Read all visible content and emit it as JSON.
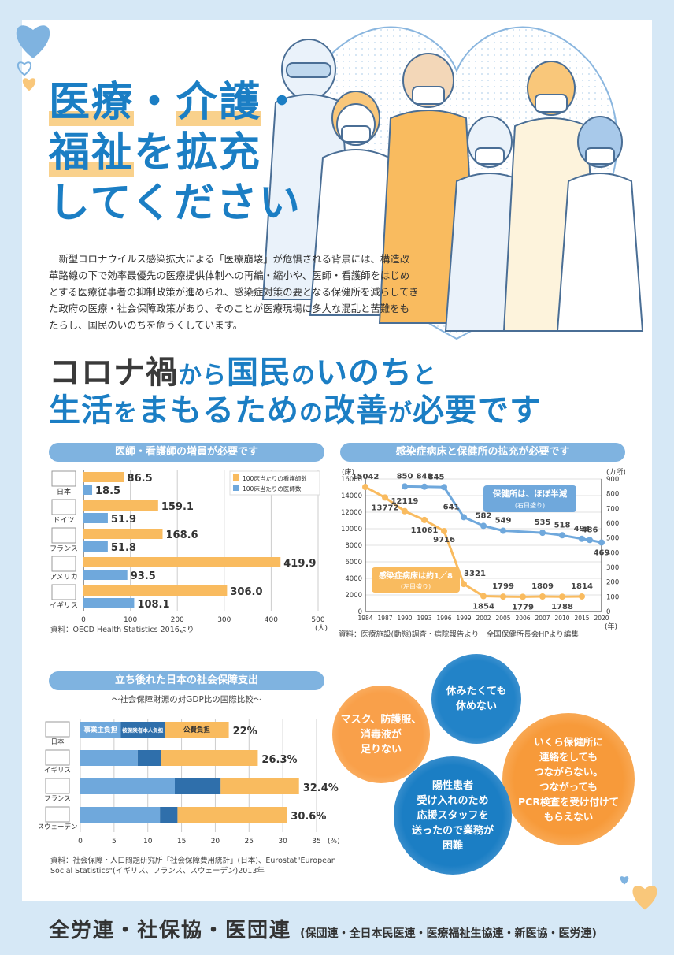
{
  "title": {
    "line1a": "医療",
    "dot1": "・",
    "line1b": "介護",
    "dot2": "・",
    "line2a": "福祉",
    "line2b": "を拡充",
    "line3": "してください"
  },
  "intro": "新型コロナウイルス感染拡大による「医療崩壊」が危惧される背景には、構造改革路線の下で効率最優先の医療提供体制への再編・縮小や、医師・看護師をはじめとする医療従事者の抑制政策が進められ、感染症対策の要となる保健所を減らしてきた政府の医療・社会保障政策があり、そのことが医療現場に多大な混乱と苦難をもたらし、国民のいのちを危うくしています。",
  "headline": {
    "l1": [
      [
        "コロナ禍",
        "d"
      ],
      [
        "から",
        "s"
      ],
      [
        "国民",
        "b"
      ],
      [
        "の",
        "s"
      ],
      [
        "いのち",
        "b"
      ],
      [
        "と",
        "s"
      ]
    ],
    "l2": [
      [
        "生活",
        "b"
      ],
      [
        "を",
        "s"
      ],
      [
        "まもるため",
        "b"
      ],
      [
        "の",
        "s"
      ],
      [
        "改善",
        "b"
      ],
      [
        "が",
        "s"
      ],
      [
        "必要です",
        "b"
      ]
    ]
  },
  "colors": {
    "blue": "#1b7ec4",
    "lightblue": "#7fb3e0",
    "orange": "#f9bb5f",
    "barblue": "#6fa8dc",
    "darkblue": "#2f6fab",
    "bubble_orange": "#f79a3a",
    "bubble_blue": "#1b7ec4"
  },
  "chart1": {
    "header": "医師・看護師の増員が必要です",
    "legend": [
      "100床当たりの看護師数",
      "100床当たりの医師数"
    ],
    "xunit": "(人)",
    "xticks": [
      "0",
      "100",
      "200",
      "300",
      "400",
      "500"
    ],
    "source": "資料：OECD Health Statistics 2016より"
  },
  "chart2": {
    "header": "感染症病床と保健所の拡充が必要です",
    "left_unit": "(床)",
    "right_unit": "(カ所)",
    "year_unit": "(年)",
    "callout_health": "保健所は、ほぼ半減",
    "callout_health_sub": "(右目盛り)",
    "callout_beds": "感染症病床は約1／8",
    "callout_beds_sub": "(左目盛り)",
    "source": "資料：医療施設(動態)調査・病院報告より　全国保健所長会HPより編集"
  },
  "chart3": {
    "header": "立ち後れた日本の社会保障支出",
    "subtitle": "～社会保障財源の対GDP比の国際比較～",
    "seg_labels": [
      "事業主負担",
      "被保険者本人負担",
      "公費負担"
    ],
    "xunit": "(%)",
    "source": "資料：社会保障・人口問題研究所「社会保障費用統計」(日本)、Eurostat\"European Social Statistics\"(イギリス、フランス、スウェーデン)2013年"
  },
  "bubbles": [
    "マスク、防護服、\n消毒液が\n足りない",
    "休みたくても\n休めない",
    "いくら保健所に\n連絡をしても\nつながらない。\nつながっても\nPCR検査を受け付けて\nもらえない",
    "陽性患者\n受け入れのため\n応援スタッフを\n送ったので業務が\n困難"
  ],
  "footer": {
    "main": "全労連・社保協・医団連",
    "sub": "(保団連・全日本民医連・医療福祉生協連・新医協・医労連)"
  },
  "chart_data": [
    {
      "type": "bar",
      "orientation": "horizontal",
      "categories": [
        "日本",
        "ドイツ",
        "フランス",
        "アメリカ",
        "イギリス"
      ],
      "series": [
        {
          "name": "100床当たりの看護師数",
          "values": [
            86.5,
            159.1,
            168.6,
            419.9,
            306.0
          ]
        },
        {
          "name": "100床当たりの医師数",
          "values": [
            18.5,
            51.9,
            51.8,
            93.5,
            108.1
          ]
        }
      ],
      "xlim": [
        0,
        500
      ]
    },
    {
      "type": "line",
      "x": [
        "1984",
        "1987",
        "1990",
        "1993",
        "1996",
        "1999",
        "2002",
        "2005",
        "2006",
        "2007",
        "2010",
        "2015",
        "2020"
      ],
      "series": [
        {
          "name": "感染症病床",
          "axis": "left",
          "points": [
            [
              "1984",
              15042
            ],
            [
              "1987",
              13772
            ],
            [
              "1990",
              12119
            ],
            [
              "1993",
              11061
            ],
            [
              "1996",
              9716
            ],
            [
              "1999",
              3321
            ],
            [
              "2002",
              1854
            ],
            [
              "2005",
              1799
            ],
            [
              "2006",
              1779
            ],
            [
              "2007",
              1809
            ],
            [
              "2010",
              1788
            ],
            [
              "2015",
              1814
            ]
          ]
        },
        {
          "name": "保健所",
          "axis": "right",
          "points": [
            [
              "1990",
              850
            ],
            [
              "1993",
              848
            ],
            [
              "1996",
              845
            ],
            [
              "1999",
              641
            ],
            [
              "2002",
              582
            ],
            [
              "2005",
              549
            ],
            [
              "2007",
              535
            ],
            [
              "2010",
              518
            ],
            [
              "2015",
              494
            ],
            [
              "2017",
              486
            ],
            [
              "2020",
              469
            ]
          ]
        }
      ],
      "ylim_left": [
        0,
        16000
      ],
      "ylim_right": [
        0,
        900
      ],
      "yticks_left": [
        "0",
        "2000",
        "4000",
        "6000",
        "8000",
        "10000",
        "12000",
        "14000",
        "16000"
      ],
      "yticks_right": [
        "0",
        "100",
        "200",
        "300",
        "400",
        "500",
        "600",
        "700",
        "800",
        "900"
      ]
    },
    {
      "type": "bar",
      "orientation": "horizontal",
      "stacked": true,
      "categories": [
        "日本",
        "イギリス",
        "フランス",
        "スウェーデン"
      ],
      "totals": [
        "22%",
        "26.3%",
        "32.4%",
        "30.6%"
      ],
      "series": [
        {
          "name": "事業主負担",
          "values": [
            6.0,
            8.5,
            14.0,
            11.8
          ]
        },
        {
          "name": "被保険者本人負担",
          "values": [
            6.5,
            3.5,
            6.8,
            2.6
          ]
        },
        {
          "name": "公費負担",
          "values": [
            9.5,
            14.3,
            11.6,
            16.2
          ]
        }
      ],
      "xlim": [
        0,
        35
      ],
      "xticks": [
        "0",
        "5",
        "10",
        "15",
        "20",
        "25",
        "30",
        "35"
      ]
    }
  ]
}
